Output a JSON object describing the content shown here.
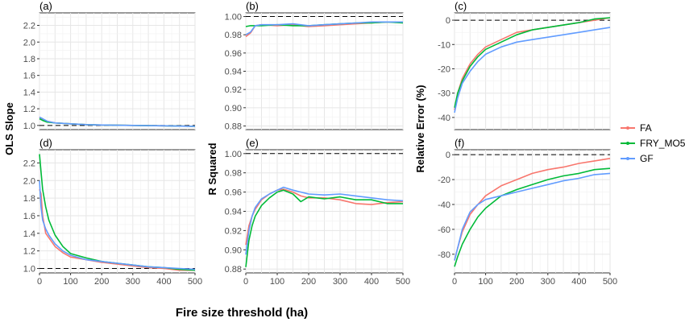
{
  "figure": {
    "xlabel": "Fire size threshold (ha)",
    "ylabel_col1": "OLS Slope",
    "ylabel_col2": "R Squared",
    "ylabel_col3": "Relative Error (%)",
    "reference_line_style": "dashed",
    "grid": true
  },
  "legend": {
    "position": "right",
    "items": [
      {
        "label": "FA",
        "color": "#F8766D"
      },
      {
        "label": "FRY_MO5",
        "color": "#00BA38"
      },
      {
        "label": "GF",
        "color": "#619CFF"
      }
    ]
  },
  "chart_data": [
    {
      "panel": "(a)",
      "type": "line",
      "xlim": [
        0,
        500
      ],
      "ylim": [
        0.95,
        2.35
      ],
      "xticks": [],
      "yticks": [
        1.0,
        1.2,
        1.4,
        1.6,
        1.8,
        2.0,
        2.2
      ],
      "ref_line": 1.0,
      "ytick_labels": [
        "1.0",
        "1.2",
        "1.4",
        "1.6",
        "1.8",
        "2.0",
        "2.2"
      ],
      "series": [
        {
          "name": "FA",
          "x": [
            0,
            10,
            25,
            50,
            100,
            150,
            200,
            300,
            400,
            500
          ],
          "y": [
            1.1,
            1.07,
            1.05,
            1.03,
            1.02,
            1.01,
            1.005,
            1.0,
            0.995,
            0.99
          ]
        },
        {
          "name": "FRY_MO5",
          "x": [
            0,
            10,
            25,
            50,
            100,
            150,
            200,
            300,
            400,
            500
          ],
          "y": [
            1.08,
            1.06,
            1.04,
            1.03,
            1.02,
            1.01,
            1.005,
            1.0,
            0.995,
            0.99
          ]
        },
        {
          "name": "GF",
          "x": [
            0,
            10,
            25,
            50,
            100,
            150,
            200,
            300,
            400,
            500
          ],
          "y": [
            1.1,
            1.08,
            1.05,
            1.03,
            1.02,
            1.01,
            1.005,
            1.0,
            0.995,
            0.99
          ]
        }
      ]
    },
    {
      "panel": "(b)",
      "type": "line",
      "xlim": [
        0,
        500
      ],
      "ylim": [
        0.876,
        1.004
      ],
      "xticks": [],
      "yticks": [
        0.88,
        0.9,
        0.92,
        0.94,
        0.96,
        0.98,
        1.0
      ],
      "ref_line": 1.0,
      "ytick_labels": [
        "0.88",
        "0.90",
        "0.92",
        "0.94",
        "0.96",
        "0.98",
        "1.00"
      ],
      "series": [
        {
          "name": "FA",
          "x": [
            0,
            15,
            30,
            50,
            100,
            150,
            200,
            250,
            300,
            350,
            400,
            450,
            500
          ],
          "y": [
            0.978,
            0.982,
            0.99,
            0.991,
            0.99,
            0.991,
            0.989,
            0.99,
            0.991,
            0.992,
            0.993,
            0.994,
            0.994
          ]
        },
        {
          "name": "FRY_MO5",
          "x": [
            0,
            15,
            30,
            50,
            100,
            150,
            200,
            250,
            300,
            350,
            400,
            450,
            500
          ],
          "y": [
            0.989,
            0.99,
            0.99,
            0.99,
            0.991,
            0.99,
            0.99,
            0.991,
            0.992,
            0.993,
            0.993,
            0.994,
            0.993
          ]
        },
        {
          "name": "GF",
          "x": [
            0,
            15,
            30,
            50,
            100,
            150,
            200,
            250,
            300,
            350,
            400,
            450,
            500
          ],
          "y": [
            0.98,
            0.983,
            0.99,
            0.991,
            0.991,
            0.992,
            0.99,
            0.991,
            0.992,
            0.993,
            0.994,
            0.994,
            0.994
          ]
        }
      ]
    },
    {
      "panel": "(c)",
      "type": "line",
      "xlim": [
        0,
        500
      ],
      "ylim": [
        -45,
        3
      ],
      "xticks": [],
      "yticks": [
        -40,
        -30,
        -20,
        -10,
        0
      ],
      "ref_line": 0,
      "ytick_labels": [
        "-40",
        "-30",
        "-20",
        "-10",
        "0"
      ],
      "series": [
        {
          "name": "FA",
          "x": [
            0,
            10,
            25,
            50,
            75,
            100,
            150,
            200,
            250,
            300,
            350,
            400,
            450,
            500
          ],
          "y": [
            -37,
            -30,
            -24,
            -18,
            -14,
            -11,
            -8,
            -5,
            -4,
            -3,
            -2,
            -1,
            0,
            1
          ]
        },
        {
          "name": "FRY_MO5",
          "x": [
            0,
            10,
            25,
            50,
            75,
            100,
            150,
            200,
            250,
            300,
            350,
            400,
            450,
            500
          ],
          "y": [
            -36,
            -30,
            -25,
            -19,
            -15,
            -12,
            -9,
            -6,
            -4,
            -3,
            -2,
            -1,
            0.5,
            1
          ]
        },
        {
          "name": "GF",
          "x": [
            0,
            10,
            25,
            50,
            75,
            100,
            150,
            200,
            250,
            300,
            350,
            400,
            450,
            500
          ],
          "y": [
            -38,
            -32,
            -26,
            -21,
            -17,
            -14,
            -11,
            -9,
            -8,
            -7,
            -6,
            -5,
            -4,
            -3
          ]
        }
      ]
    },
    {
      "panel": "(d)",
      "type": "line",
      "xlim": [
        0,
        500
      ],
      "ylim": [
        0.95,
        2.35
      ],
      "xticks": [
        0,
        100,
        200,
        300,
        400,
        500
      ],
      "yticks": [
        1.0,
        1.2,
        1.4,
        1.6,
        1.8,
        2.0,
        2.2
      ],
      "ref_line": 1.0,
      "ytick_labels": [
        "1.0",
        "1.2",
        "1.4",
        "1.6",
        "1.8",
        "2.0",
        "2.2"
      ],
      "series": [
        {
          "name": "FA",
          "x": [
            0,
            5,
            10,
            20,
            30,
            50,
            75,
            100,
            150,
            200,
            250,
            300,
            350,
            400,
            450,
            500
          ],
          "y": [
            1.9,
            1.85,
            1.6,
            1.4,
            1.35,
            1.25,
            1.18,
            1.13,
            1.1,
            1.07,
            1.05,
            1.03,
            1.01,
            1.0,
            0.98,
            0.98
          ]
        },
        {
          "name": "FRY_MO5",
          "x": [
            0,
            5,
            10,
            20,
            30,
            50,
            75,
            100,
            150,
            200,
            250,
            300,
            350,
            400,
            450,
            500
          ],
          "y": [
            2.3,
            2.1,
            1.9,
            1.7,
            1.55,
            1.38,
            1.25,
            1.17,
            1.12,
            1.08,
            1.06,
            1.04,
            1.02,
            1.01,
            0.99,
            0.98
          ]
        },
        {
          "name": "GF",
          "x": [
            0,
            5,
            10,
            20,
            30,
            50,
            75,
            100,
            150,
            200,
            250,
            300,
            350,
            400,
            450,
            500
          ],
          "y": [
            2.0,
            1.7,
            1.55,
            1.45,
            1.38,
            1.28,
            1.2,
            1.15,
            1.1,
            1.08,
            1.06,
            1.04,
            1.02,
            1.01,
            1.0,
            0.99
          ]
        }
      ]
    },
    {
      "panel": "(e)",
      "type": "line",
      "xlim": [
        0,
        500
      ],
      "ylim": [
        0.876,
        1.004
      ],
      "xticks": [
        0,
        100,
        200,
        300,
        400,
        500
      ],
      "yticks": [
        0.88,
        0.9,
        0.92,
        0.94,
        0.96,
        0.98,
        1.0
      ],
      "ref_line": 1.0,
      "ytick_labels": [
        "0.88",
        "0.90",
        "0.92",
        "0.94",
        "0.96",
        "0.98",
        "1.00"
      ],
      "series": [
        {
          "name": "FA",
          "x": [
            0,
            10,
            20,
            30,
            50,
            75,
            100,
            120,
            150,
            175,
            200,
            250,
            300,
            350,
            400,
            450,
            500
          ],
          "y": [
            0.905,
            0.925,
            0.935,
            0.942,
            0.952,
            0.958,
            0.962,
            0.963,
            0.96,
            0.956,
            0.954,
            0.954,
            0.952,
            0.948,
            0.947,
            0.949,
            0.95
          ]
        },
        {
          "name": "FRY_MO5",
          "x": [
            0,
            10,
            20,
            30,
            50,
            75,
            100,
            120,
            150,
            175,
            200,
            250,
            300,
            350,
            400,
            450,
            500
          ],
          "y": [
            0.882,
            0.91,
            0.925,
            0.935,
            0.946,
            0.954,
            0.96,
            0.962,
            0.958,
            0.95,
            0.955,
            0.953,
            0.955,
            0.952,
            0.952,
            0.948,
            0.948
          ]
        },
        {
          "name": "GF",
          "x": [
            0,
            10,
            20,
            30,
            50,
            75,
            100,
            120,
            150,
            175,
            200,
            250,
            300,
            350,
            400,
            450,
            500
          ],
          "y": [
            0.895,
            0.92,
            0.935,
            0.944,
            0.953,
            0.958,
            0.962,
            0.965,
            0.962,
            0.96,
            0.958,
            0.957,
            0.958,
            0.956,
            0.954,
            0.952,
            0.951
          ]
        }
      ]
    },
    {
      "panel": "(f)",
      "type": "line",
      "xlim": [
        0,
        500
      ],
      "ylim": [
        -95,
        4
      ],
      "xticks": [
        0,
        100,
        200,
        300,
        400,
        500
      ],
      "yticks": [
        -80,
        -60,
        -40,
        -20,
        0
      ],
      "ref_line": 0,
      "ytick_labels": [
        "-80",
        "-60",
        "-40",
        "-20",
        "0"
      ],
      "series": [
        {
          "name": "FA",
          "x": [
            0,
            10,
            25,
            50,
            75,
            100,
            150,
            200,
            250,
            300,
            350,
            400,
            450,
            500
          ],
          "y": [
            -85,
            -75,
            -62,
            -48,
            -40,
            -33,
            -25,
            -20,
            -15,
            -12,
            -10,
            -7,
            -5,
            -3
          ]
        },
        {
          "name": "FRY_MO5",
          "x": [
            0,
            10,
            25,
            50,
            75,
            100,
            150,
            200,
            250,
            300,
            350,
            400,
            450,
            500
          ],
          "y": [
            -90,
            -82,
            -72,
            -60,
            -50,
            -43,
            -33,
            -28,
            -24,
            -20,
            -17,
            -15,
            -12,
            -11
          ]
        },
        {
          "name": "GF",
          "x": [
            0,
            10,
            25,
            50,
            75,
            100,
            150,
            200,
            250,
            300,
            350,
            400,
            450,
            500
          ],
          "y": [
            -85,
            -75,
            -60,
            -46,
            -40,
            -36,
            -33,
            -30,
            -27,
            -24,
            -21,
            -19,
            -16,
            -15
          ]
        }
      ]
    }
  ]
}
